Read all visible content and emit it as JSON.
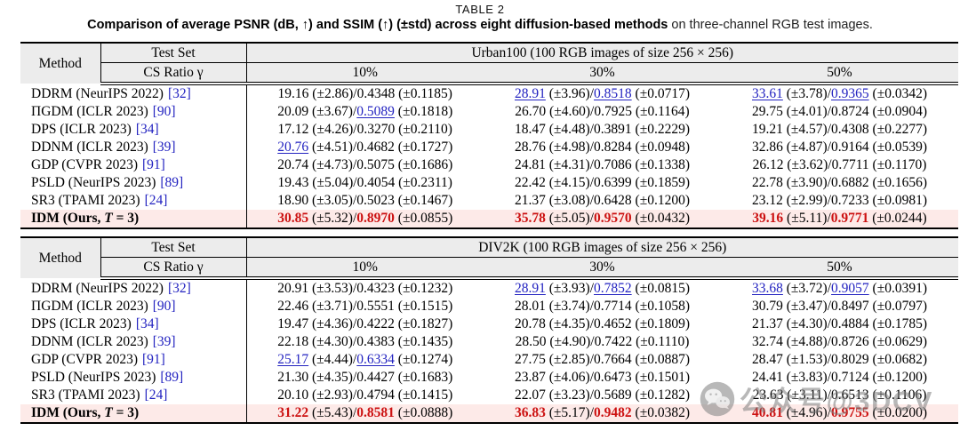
{
  "title": "TABLE 2",
  "caption": {
    "bold": "Comparison of average PSNR (dB, ↑) and SSIM (↑) (±std) across eight diffusion-based methods",
    "normal": " on three-channel RGB test images."
  },
  "colors": {
    "citation_blue": "#2222c0",
    "second_best_blue": "#2222c0",
    "best_red": "#cc1111",
    "ours_row_pink": "#fdeae8",
    "header_gray": "#ececec"
  },
  "header": {
    "method": "Method",
    "test_set": "Test Set",
    "cs_ratio": "CS Ratio γ",
    "ratios": [
      "10%",
      "30%",
      "50%"
    ]
  },
  "tables": [
    {
      "dataset": "Urban100 (100 RGB images of size 256 × 256)",
      "rows": [
        {
          "method": {
            "pre": "DDRM (NeurIPS 2022)",
            "cite": "[32]"
          },
          "cells": [
            {
              "psnr": "19.16",
              "psnr_std": "(±2.86)",
              "ssim": "0.4348",
              "ssim_std": "(±0.1185)",
              "hp": "",
              "hs": ""
            },
            {
              "psnr": "28.91",
              "psnr_std": "(±3.96)",
              "ssim": "0.8518",
              "ssim_std": "(±0.0717)",
              "hp": "u",
              "hs": "u"
            },
            {
              "psnr": "33.61",
              "psnr_std": "(±3.78)",
              "ssim": "0.9365",
              "ssim_std": "(±0.0342)",
              "hp": "u",
              "hs": "u"
            }
          ]
        },
        {
          "method": {
            "pre": "ΠGDM (ICLR 2023)",
            "cite": "[90]"
          },
          "cells": [
            {
              "psnr": "20.09",
              "psnr_std": "(±3.67)",
              "ssim": "0.5089",
              "ssim_std": "(±0.1818)",
              "hp": "",
              "hs": "u"
            },
            {
              "psnr": "26.70",
              "psnr_std": "(±4.60)",
              "ssim": "0.7925",
              "ssim_std": "(±0.1164)",
              "hp": "",
              "hs": ""
            },
            {
              "psnr": "29.75",
              "psnr_std": "(±4.01)",
              "ssim": "0.8724",
              "ssim_std": "(±0.0904)",
              "hp": "",
              "hs": ""
            }
          ]
        },
        {
          "method": {
            "pre": "DPS (ICLR 2023)",
            "cite": "[34]"
          },
          "cells": [
            {
              "psnr": "17.12",
              "psnr_std": "(±4.26)",
              "ssim": "0.3270",
              "ssim_std": "(±0.2110)",
              "hp": "",
              "hs": ""
            },
            {
              "psnr": "18.47",
              "psnr_std": "(±4.48)",
              "ssim": "0.3891",
              "ssim_std": "(±0.2229)",
              "hp": "",
              "hs": ""
            },
            {
              "psnr": "19.21",
              "psnr_std": "(±4.57)",
              "ssim": "0.4308",
              "ssim_std": "(±0.2277)",
              "hp": "",
              "hs": ""
            }
          ]
        },
        {
          "method": {
            "pre": "DDNM (ICLR 2023)",
            "cite": "[39]"
          },
          "cells": [
            {
              "psnr": "20.76",
              "psnr_std": "(±4.51)",
              "ssim": "0.4682",
              "ssim_std": "(±0.1727)",
              "hp": "u",
              "hs": ""
            },
            {
              "psnr": "28.76",
              "psnr_std": "(±4.98)",
              "ssim": "0.8284",
              "ssim_std": "(±0.0948)",
              "hp": "",
              "hs": ""
            },
            {
              "psnr": "32.86",
              "psnr_std": "(±4.87)",
              "ssim": "0.9164",
              "ssim_std": "(±0.0539)",
              "hp": "",
              "hs": ""
            }
          ]
        },
        {
          "method": {
            "pre": "GDP (CVPR 2023)",
            "cite": "[91]"
          },
          "cells": [
            {
              "psnr": "20.74",
              "psnr_std": "(±4.73)",
              "ssim": "0.5075",
              "ssim_std": "(±0.1686)",
              "hp": "",
              "hs": ""
            },
            {
              "psnr": "24.81",
              "psnr_std": "(±4.31)",
              "ssim": "0.7086",
              "ssim_std": "(±0.1338)",
              "hp": "",
              "hs": ""
            },
            {
              "psnr": "26.12",
              "psnr_std": "(±3.62)",
              "ssim": "0.7711",
              "ssim_std": "(±0.1170)",
              "hp": "",
              "hs": ""
            }
          ]
        },
        {
          "method": {
            "pre": "PSLD (NeurIPS 2023)",
            "cite": "[89]"
          },
          "cells": [
            {
              "psnr": "19.43",
              "psnr_std": "(±5.04)",
              "ssim": "0.4054",
              "ssim_std": "(±0.2311)",
              "hp": "",
              "hs": ""
            },
            {
              "psnr": "22.42",
              "psnr_std": "(±4.15)",
              "ssim": "0.6399",
              "ssim_std": "(±0.1859)",
              "hp": "",
              "hs": ""
            },
            {
              "psnr": "22.78",
              "psnr_std": "(±3.90)",
              "ssim": "0.6882",
              "ssim_std": "(±0.1656)",
              "hp": "",
              "hs": ""
            }
          ]
        },
        {
          "method": {
            "pre": "SR3 (TPAMI 2023)",
            "cite": "[24]"
          },
          "cells": [
            {
              "psnr": "18.90",
              "psnr_std": "(±3.05)",
              "ssim": "0.5023",
              "ssim_std": "(±0.1467)",
              "hp": "",
              "hs": ""
            },
            {
              "psnr": "21.37",
              "psnr_std": "(±3.08)",
              "ssim": "0.6428",
              "ssim_std": "(±0.1200)",
              "hp": "",
              "hs": ""
            },
            {
              "psnr": "23.12",
              "psnr_std": "(±2.99)",
              "ssim": "0.7233",
              "ssim_std": "(±0.0981)",
              "hp": "",
              "hs": ""
            }
          ]
        },
        {
          "ours": true,
          "method": {
            "pre": "IDM (Ours, ",
            "var": "T",
            "post": " = 3)"
          },
          "cells": [
            {
              "psnr": "30.85",
              "psnr_std": "(±5.32)",
              "ssim": "0.8970",
              "ssim_std": "(±0.0855)",
              "hp": "r",
              "hs": "r"
            },
            {
              "psnr": "35.78",
              "psnr_std": "(±5.05)",
              "ssim": "0.9570",
              "ssim_std": "(±0.0432)",
              "hp": "r",
              "hs": "r"
            },
            {
              "psnr": "39.16",
              "psnr_std": "(±5.11)",
              "ssim": "0.9771",
              "ssim_std": "(±0.0244)",
              "hp": "r",
              "hs": "r"
            }
          ]
        }
      ]
    },
    {
      "dataset": "DIV2K (100 RGB images of size 256 × 256)",
      "rows": [
        {
          "method": {
            "pre": "DDRM (NeurIPS 2022)",
            "cite": "[32]"
          },
          "cells": [
            {
              "psnr": "20.91",
              "psnr_std": "(±3.53)",
              "ssim": "0.4323",
              "ssim_std": "(±0.1232)",
              "hp": "",
              "hs": ""
            },
            {
              "psnr": "28.91",
              "psnr_std": "(±3.93)",
              "ssim": "0.7852",
              "ssim_std": "(±0.0815)",
              "hp": "u",
              "hs": "u"
            },
            {
              "psnr": "33.68",
              "psnr_std": "(±3.72)",
              "ssim": "0.9057",
              "ssim_std": "(±0.0391)",
              "hp": "u",
              "hs": "u"
            }
          ]
        },
        {
          "method": {
            "pre": "ΠGDM (ICLR 2023)",
            "cite": "[90]"
          },
          "cells": [
            {
              "psnr": "22.46",
              "psnr_std": "(±3.71)",
              "ssim": "0.5551",
              "ssim_std": "(±0.1515)",
              "hp": "",
              "hs": ""
            },
            {
              "psnr": "28.01",
              "psnr_std": "(±3.74)",
              "ssim": "0.7714",
              "ssim_std": "(±0.1058)",
              "hp": "",
              "hs": ""
            },
            {
              "psnr": "30.79",
              "psnr_std": "(±3.47)",
              "ssim": "0.8497",
              "ssim_std": "(±0.0797)",
              "hp": "",
              "hs": ""
            }
          ]
        },
        {
          "method": {
            "pre": "DPS (ICLR 2023)",
            "cite": "[34]"
          },
          "cells": [
            {
              "psnr": "19.47",
              "psnr_std": "(±4.36)",
              "ssim": "0.4222",
              "ssim_std": "(±0.1827)",
              "hp": "",
              "hs": ""
            },
            {
              "psnr": "20.78",
              "psnr_std": "(±4.35)",
              "ssim": "0.4652",
              "ssim_std": "(±0.1809)",
              "hp": "",
              "hs": ""
            },
            {
              "psnr": "21.37",
              "psnr_std": "(±4.30)",
              "ssim": "0.4884",
              "ssim_std": "(±0.1785)",
              "hp": "",
              "hs": ""
            }
          ]
        },
        {
          "method": {
            "pre": "DDNM (ICLR 2023)",
            "cite": "[39]"
          },
          "cells": [
            {
              "psnr": "22.18",
              "psnr_std": "(±4.30)",
              "ssim": "0.4383",
              "ssim_std": "(±0.1435)",
              "hp": "",
              "hs": ""
            },
            {
              "psnr": "28.50",
              "psnr_std": "(±4.90)",
              "ssim": "0.7422",
              "ssim_std": "(±0.1110)",
              "hp": "",
              "hs": ""
            },
            {
              "psnr": "32.74",
              "psnr_std": "(±4.88)",
              "ssim": "0.8726",
              "ssim_std": "(±0.0629)",
              "hp": "",
              "hs": ""
            }
          ]
        },
        {
          "method": {
            "pre": "GDP (CVPR 2023)",
            "cite": "[91]"
          },
          "cells": [
            {
              "psnr": "25.17",
              "psnr_std": "(±4.44)",
              "ssim": "0.6334",
              "ssim_std": "(±0.1274)",
              "hp": "u",
              "hs": "u"
            },
            {
              "psnr": "27.75",
              "psnr_std": "(±2.85)",
              "ssim": "0.7664",
              "ssim_std": "(±0.0887)",
              "hp": "",
              "hs": ""
            },
            {
              "psnr": "28.47",
              "psnr_std": "(±1.53)",
              "ssim": "0.8029",
              "ssim_std": "(±0.0682)",
              "hp": "",
              "hs": ""
            }
          ]
        },
        {
          "method": {
            "pre": "PSLD (NeurIPS 2023)",
            "cite": "[89]"
          },
          "cells": [
            {
              "psnr": "21.30",
              "psnr_std": "(±4.35)",
              "ssim": "0.4427",
              "ssim_std": "(±0.1683)",
              "hp": "",
              "hs": ""
            },
            {
              "psnr": "23.87",
              "psnr_std": "(±4.06)",
              "ssim": "0.6473",
              "ssim_std": "(±0.1501)",
              "hp": "",
              "hs": ""
            },
            {
              "psnr": "24.41",
              "psnr_std": "(±3.83)",
              "ssim": "0.7124",
              "ssim_std": "(±0.1200)",
              "hp": "",
              "hs": ""
            }
          ]
        },
        {
          "method": {
            "pre": "SR3 (TPAMI 2023)",
            "cite": "[24]"
          },
          "cells": [
            {
              "psnr": "20.10",
              "psnr_std": "(±2.93)",
              "ssim": "0.4794",
              "ssim_std": "(±0.1415)",
              "hp": "",
              "hs": ""
            },
            {
              "psnr": "22.07",
              "psnr_std": "(±3.23)",
              "ssim": "0.5689",
              "ssim_std": "(±0.1282)",
              "hp": "",
              "hs": ""
            },
            {
              "psnr": "23.63",
              "psnr_std": "(±3.11)",
              "ssim": "0.6513",
              "ssim_std": "(±0.1106)",
              "hp": "",
              "hs": ""
            }
          ]
        },
        {
          "ours": true,
          "method": {
            "pre": "IDM (Ours, ",
            "var": "T",
            "post": " = 3)"
          },
          "cells": [
            {
              "psnr": "31.22",
              "psnr_std": "(±5.43)",
              "ssim": "0.8581",
              "ssim_std": "(±0.0888)",
              "hp": "r",
              "hs": "r"
            },
            {
              "psnr": "36.83",
              "psnr_std": "(±5.17)",
              "ssim": "0.9482",
              "ssim_std": "(±0.0382)",
              "hp": "r",
              "hs": "r"
            },
            {
              "psnr": "40.81",
              "psnr_std": "(±4.96)",
              "ssim": "0.9755",
              "ssim_std": "(±0.0200)",
              "hp": "r",
              "hs": "r"
            }
          ]
        }
      ]
    }
  ],
  "watermark": {
    "icon": "wechat-icon",
    "text": "公众号@3DCV"
  }
}
